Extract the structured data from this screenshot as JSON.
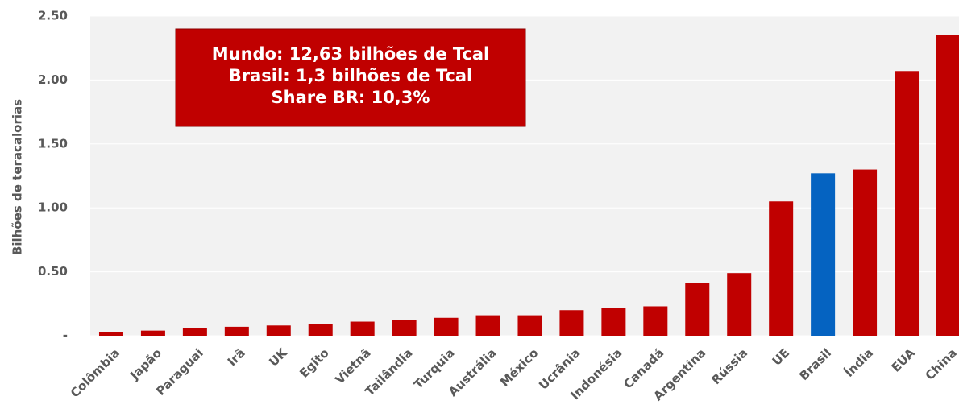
{
  "chart_data": {
    "type": "bar",
    "y_label": "Bilhões de teracalorias",
    "annotation": [
      "Mundo: 12,63 bilhões de Tcal",
      "Brasil: 1,3 bilhões de Tcal",
      "Share BR: 10,3%"
    ],
    "categories": [
      "Colômbia",
      "Japão",
      "Paraguai",
      "Irã",
      "UK",
      "Egito",
      "Vietnã",
      "Tailândia",
      "Turquia",
      "Austrália",
      "México",
      "Ucrânia",
      "Indonésia",
      "Canadá",
      "Argentina",
      "Rússia",
      "UE",
      "Brasil",
      "Índia",
      "EUA",
      "China"
    ],
    "values": [
      0.03,
      0.04,
      0.06,
      0.07,
      0.08,
      0.09,
      0.11,
      0.12,
      0.14,
      0.16,
      0.16,
      0.2,
      0.22,
      0.23,
      0.41,
      0.49,
      1.05,
      1.27,
      1.3,
      2.07,
      2.35
    ],
    "colors": [
      "#c00000",
      "#c00000",
      "#c00000",
      "#c00000",
      "#c00000",
      "#c00000",
      "#c00000",
      "#c00000",
      "#c00000",
      "#c00000",
      "#c00000",
      "#c00000",
      "#c00000",
      "#c00000",
      "#c00000",
      "#c00000",
      "#c00000",
      "#0563c1",
      "#c00000",
      "#c00000",
      "#c00000"
    ],
    "ylim": [
      0,
      2.5
    ],
    "yticks": [
      {
        "value": 0,
        "label": "-"
      },
      {
        "value": 0.5,
        "label": "0.50"
      },
      {
        "value": 1,
        "label": "1.00"
      },
      {
        "value": 1.5,
        "label": "1.50"
      },
      {
        "value": 2,
        "label": "2.00"
      },
      {
        "value": 2.5,
        "label": "2.50"
      }
    ],
    "grid": true
  }
}
